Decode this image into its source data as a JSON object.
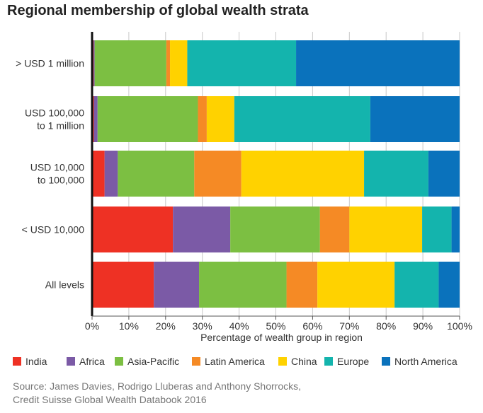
{
  "title": "Regional membership of global wealth strata",
  "source": {
    "line1": "Source: James Davies, Rodrigo Lluberas and Anthony Shorrocks,",
    "line2": "Credit Suisse Global Wealth Databook 2016"
  },
  "chart_data": {
    "type": "bar",
    "orientation": "horizontal",
    "stacked": true,
    "title": "Regional membership of global wealth strata",
    "xlabel": "Percentage of wealth group in region",
    "ylabel": "",
    "xlim": [
      0,
      100
    ],
    "xticks": [
      "0%",
      "10%",
      "20%",
      "30%",
      "40%",
      "50%",
      "60%",
      "70%",
      "80%",
      "90%",
      "100%"
    ],
    "grid": true,
    "legend_position": "bottom",
    "categories": [
      "> USD 1 million",
      "USD 100,000\nto 1 million",
      "USD 10,000\nto 100,000",
      "< USD 10,000",
      "All levels"
    ],
    "series": [
      {
        "name": "India",
        "color": "#ee3124",
        "values": [
          0.4,
          0.5,
          3.4,
          22.0,
          16.8
        ]
      },
      {
        "name": "Africa",
        "color": "#7b5aa6",
        "values": [
          0.3,
          1.0,
          3.6,
          15.6,
          12.3
        ]
      },
      {
        "name": "Asia-Pacific",
        "color": "#7cbf42",
        "values": [
          19.5,
          27.3,
          20.8,
          24.4,
          23.8
        ]
      },
      {
        "name": "Latin America",
        "color": "#f58a25",
        "values": [
          1.0,
          2.4,
          12.8,
          8.0,
          8.4
        ]
      },
      {
        "name": "China",
        "color": "#ffd200",
        "values": [
          4.7,
          7.5,
          33.4,
          19.8,
          21.0
        ]
      },
      {
        "name": "Europe",
        "color": "#14b4ad",
        "values": [
          29.6,
          37.0,
          17.5,
          8.0,
          12.0
        ]
      },
      {
        "name": "North America",
        "color": "#0a72bc",
        "values": [
          44.5,
          24.3,
          8.5,
          2.2,
          5.7
        ]
      }
    ]
  }
}
